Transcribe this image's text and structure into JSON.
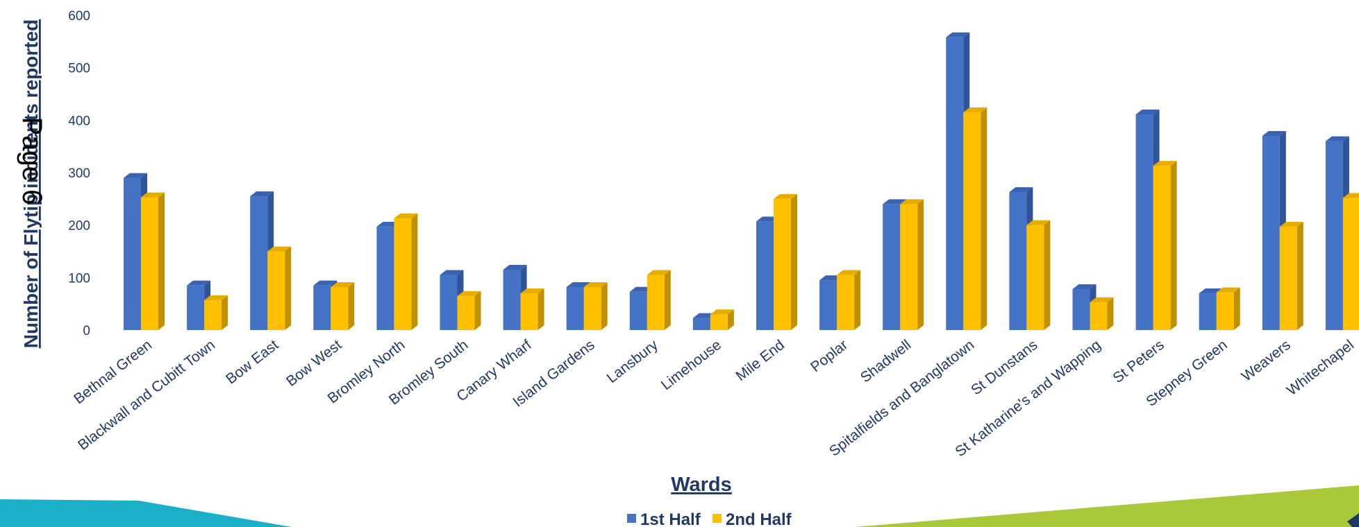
{
  "page_label": "Page 6",
  "colors": {
    "series1": "#4472c4",
    "series1_dark": "#2f5597",
    "series1_top": "#3a64b3",
    "series2": "#ffc000",
    "series2_dark": "#bf9000",
    "series2_top": "#e6ad00",
    "text": "#1f3864",
    "banner_teal": "#1cb0c8",
    "banner_green": "#a9c93a"
  },
  "chart_data": {
    "type": "bar",
    "title": "",
    "xlabel": "Wards",
    "ylabel": "Number of Flytip incidents reported",
    "ylim": [
      0,
      600
    ],
    "yticks": [
      0,
      100,
      200,
      300,
      400,
      500,
      600
    ],
    "grid": false,
    "legend_position": "bottom",
    "categories": [
      "Bethnal Green",
      "Blackwall and Cubitt Town",
      "Bow East",
      "Bow West",
      "Bromley North",
      "Bromley South",
      "Canary Wharf",
      "Island Gardens",
      "Lansbury",
      "Limehouse",
      "Mile End",
      "Poplar",
      "Shadwell",
      "Spitalfields and Banglatown",
      "St Dunstans",
      "St Katharine's and Wapping",
      "St Peters",
      "Stepney Green",
      "Weavers",
      "Whitechapel"
    ],
    "series": [
      {
        "name": "1st Half",
        "values": [
          290,
          85,
          255,
          85,
          197,
          105,
          115,
          82,
          73,
          23,
          207,
          95,
          240,
          558,
          263,
          78,
          411,
          70,
          370,
          360
        ]
      },
      {
        "name": "2nd Half",
        "values": [
          253,
          57,
          150,
          82,
          213,
          65,
          70,
          82,
          105,
          30,
          250,
          105,
          240,
          415,
          200,
          53,
          313,
          72,
          197,
          252
        ]
      }
    ]
  }
}
